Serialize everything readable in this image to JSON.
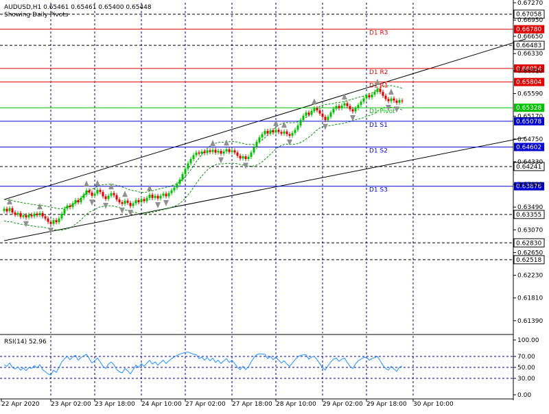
{
  "header": {
    "symbol_line": "AUDUSD,H1  0.65461 0.65461 0.65400 0.65448",
    "indicator_line": "Showing Daily Pivots"
  },
  "rsi": {
    "label": "RSI(14) 52.96",
    "levels": [
      100,
      70,
      50,
      30,
      0
    ],
    "level_labels": [
      "100.00",
      "70.00",
      "50.00",
      "30.00",
      "0.00"
    ]
  },
  "colors": {
    "up": "#00c000",
    "down": "#e00000",
    "resistance": "#e00000",
    "support": "#0000d0",
    "pivot": "#00c000",
    "grid": "#000080",
    "rsi_line": "#1e90ff",
    "band": "#009000",
    "fractal": "#909090"
  },
  "chart_data": {
    "type": "candlestick",
    "symbol": "AUDUSD",
    "timeframe": "H1",
    "last_bar": {
      "open": 0.65461,
      "high": 0.65461,
      "low": 0.654,
      "close": 0.65448
    },
    "ylim": [
      0.6116,
      0.6727
    ],
    "price_axis_ticks": [
      "0.67270",
      "0.66950",
      "0.66650",
      "0.66330",
      "0.66010",
      "0.65590",
      "0.65170",
      "0.64750",
      "0.64330",
      "0.63910",
      "0.63490",
      "0.63070",
      "0.62650",
      "0.62230",
      "0.61810",
      "0.61390"
    ],
    "x_axis_ticks": [
      "22 Apr 2020",
      "23 Apr 02:00",
      "23 Apr 18:00",
      "24 Apr 10:00",
      "27 Apr 02:00",
      "27 Apr 18:00",
      "28 Apr 10:00",
      "29 Apr 02:00",
      "29 Apr 18:00",
      "30 Apr 10:00"
    ],
    "pivot_levels": [
      {
        "label": "D1 R3",
        "value": 0.6678,
        "price_label": "0.66780",
        "kind": "resistance"
      },
      {
        "label": "D1 R2",
        "value": 0.66054,
        "price_label": "0.66054",
        "kind": "resistance_faint"
      },
      {
        "label": "D1 R1",
        "value": 0.65804,
        "price_label": "0.65804",
        "kind": "resistance"
      },
      {
        "label": "D1 Pivot",
        "value": 0.65328,
        "price_label": "0.65328",
        "kind": "pivot"
      },
      {
        "label": "D1 S1",
        "value": 0.65078,
        "price_label": "0.65078",
        "kind": "support"
      },
      {
        "label": "D1 S2",
        "value": 0.64602,
        "price_label": "0.64602",
        "kind": "support"
      },
      {
        "label": "D1 S3",
        "value": 0.63876,
        "price_label": "0.63876",
        "kind": "support"
      }
    ],
    "dashed_levels": [
      {
        "value": 0.67058,
        "price_label": "0.67058"
      },
      {
        "value": 0.66483,
        "price_label": "0.66483"
      },
      {
        "value": 0.64241,
        "price_label": "0.64241"
      },
      {
        "value": 0.63355,
        "price_label": "0.63355"
      },
      {
        "value": 0.6283,
        "price_label": "0.62830"
      },
      {
        "value": 0.62518,
        "price_label": "0.62518"
      }
    ],
    "channel_lines": [
      {
        "name": "upper",
        "start": {
          "bar": 0,
          "price": 0.6363
        },
        "end": {
          "bar": 190,
          "price": 0.666
        }
      },
      {
        "name": "lower",
        "start": {
          "bar": 0,
          "price": 0.6287
        },
        "end": {
          "bar": 190,
          "price": 0.6478
        }
      }
    ],
    "candles": [
      {
        "o": 0.6342,
        "c": 0.6346
      },
      {
        "o": 0.6346,
        "c": 0.6341
      },
      {
        "o": 0.6342,
        "c": 0.6347
      },
      {
        "o": 0.6347,
        "c": 0.6339
      },
      {
        "o": 0.6339,
        "c": 0.6335
      },
      {
        "o": 0.6335,
        "c": 0.6338
      },
      {
        "o": 0.6338,
        "c": 0.6331
      },
      {
        "o": 0.6331,
        "c": 0.6334
      },
      {
        "o": 0.6334,
        "c": 0.633
      },
      {
        "o": 0.633,
        "c": 0.6335
      },
      {
        "o": 0.6335,
        "c": 0.6332
      },
      {
        "o": 0.6332,
        "c": 0.6337
      },
      {
        "o": 0.6337,
        "c": 0.6334
      },
      {
        "o": 0.6334,
        "c": 0.6338
      },
      {
        "o": 0.6338,
        "c": 0.6332
      },
      {
        "o": 0.6332,
        "c": 0.6328
      },
      {
        "o": 0.6328,
        "c": 0.6322
      },
      {
        "o": 0.6322,
        "c": 0.6318
      },
      {
        "o": 0.6318,
        "c": 0.6325
      },
      {
        "o": 0.6325,
        "c": 0.6321
      },
      {
        "o": 0.6321,
        "c": 0.6328
      },
      {
        "o": 0.6328,
        "c": 0.6337
      },
      {
        "o": 0.6337,
        "c": 0.6346
      },
      {
        "o": 0.6346,
        "c": 0.6352
      },
      {
        "o": 0.6352,
        "c": 0.6349
      },
      {
        "o": 0.6349,
        "c": 0.6356
      },
      {
        "o": 0.6356,
        "c": 0.6362
      },
      {
        "o": 0.6362,
        "c": 0.6358
      },
      {
        "o": 0.6358,
        "c": 0.6366
      },
      {
        "o": 0.6366,
        "c": 0.6372
      },
      {
        "o": 0.6372,
        "c": 0.638
      },
      {
        "o": 0.638,
        "c": 0.6376
      },
      {
        "o": 0.6376,
        "c": 0.637
      },
      {
        "o": 0.637,
        "c": 0.6374
      },
      {
        "o": 0.6374,
        "c": 0.6381
      },
      {
        "o": 0.6381,
        "c": 0.6377
      },
      {
        "o": 0.6377,
        "c": 0.6369
      },
      {
        "o": 0.6369,
        "c": 0.6364
      },
      {
        "o": 0.6364,
        "c": 0.637
      },
      {
        "o": 0.637,
        "c": 0.6375
      },
      {
        "o": 0.6375,
        "c": 0.6371
      },
      {
        "o": 0.6371,
        "c": 0.6363
      },
      {
        "o": 0.6363,
        "c": 0.6358
      },
      {
        "o": 0.6358,
        "c": 0.6355
      },
      {
        "o": 0.6355,
        "c": 0.6361
      },
      {
        "o": 0.6361,
        "c": 0.6357
      },
      {
        "o": 0.6357,
        "c": 0.6351
      },
      {
        "o": 0.6351,
        "c": 0.6356
      },
      {
        "o": 0.6356,
        "c": 0.6362
      },
      {
        "o": 0.6362,
        "c": 0.6358
      },
      {
        "o": 0.6358,
        "c": 0.6364
      },
      {
        "o": 0.6364,
        "c": 0.636
      },
      {
        "o": 0.636,
        "c": 0.6366
      },
      {
        "o": 0.6366,
        "c": 0.6372
      },
      {
        "o": 0.6372,
        "c": 0.6366
      },
      {
        "o": 0.6366,
        "c": 0.637
      },
      {
        "o": 0.637,
        "c": 0.6365
      },
      {
        "o": 0.6365,
        "c": 0.637
      },
      {
        "o": 0.637,
        "c": 0.6374
      },
      {
        "o": 0.6374,
        "c": 0.6369
      },
      {
        "o": 0.6369,
        "c": 0.6375
      },
      {
        "o": 0.6375,
        "c": 0.638
      },
      {
        "o": 0.638,
        "c": 0.6385
      },
      {
        "o": 0.6385,
        "c": 0.6392
      },
      {
        "o": 0.6392,
        "c": 0.64
      },
      {
        "o": 0.64,
        "c": 0.641
      },
      {
        "o": 0.641,
        "c": 0.642
      },
      {
        "o": 0.642,
        "c": 0.643
      },
      {
        "o": 0.643,
        "c": 0.6438
      },
      {
        "o": 0.6438,
        "c": 0.6445
      },
      {
        "o": 0.6445,
        "c": 0.645
      },
      {
        "o": 0.645,
        "c": 0.6448
      },
      {
        "o": 0.6448,
        "c": 0.6452
      },
      {
        "o": 0.6452,
        "c": 0.6449
      },
      {
        "o": 0.6449,
        "c": 0.6454
      },
      {
        "o": 0.6454,
        "c": 0.6451
      },
      {
        "o": 0.6451,
        "c": 0.6455
      },
      {
        "o": 0.6455,
        "c": 0.645
      },
      {
        "o": 0.645,
        "c": 0.6453
      },
      {
        "o": 0.6453,
        "c": 0.6448
      },
      {
        "o": 0.6448,
        "c": 0.6452
      },
      {
        "o": 0.6452,
        "c": 0.6456
      },
      {
        "o": 0.6456,
        "c": 0.6451
      },
      {
        "o": 0.6451,
        "c": 0.6454
      },
      {
        "o": 0.6454,
        "c": 0.645
      },
      {
        "o": 0.645,
        "c": 0.6444
      },
      {
        "o": 0.6444,
        "c": 0.6439
      },
      {
        "o": 0.6439,
        "c": 0.6443
      },
      {
        "o": 0.6443,
        "c": 0.6438
      },
      {
        "o": 0.6438,
        "c": 0.6442
      },
      {
        "o": 0.6442,
        "c": 0.645
      },
      {
        "o": 0.645,
        "c": 0.646
      },
      {
        "o": 0.646,
        "c": 0.647
      },
      {
        "o": 0.647,
        "c": 0.6478
      },
      {
        "o": 0.6478,
        "c": 0.6484
      },
      {
        "o": 0.6484,
        "c": 0.649
      },
      {
        "o": 0.649,
        "c": 0.6485
      },
      {
        "o": 0.6485,
        "c": 0.6491
      },
      {
        "o": 0.6491,
        "c": 0.6487
      },
      {
        "o": 0.6487,
        "c": 0.6492
      },
      {
        "o": 0.6492,
        "c": 0.6488
      },
      {
        "o": 0.6488,
        "c": 0.6485
      },
      {
        "o": 0.6485,
        "c": 0.6489
      },
      {
        "o": 0.6489,
        "c": 0.6484
      },
      {
        "o": 0.6484,
        "c": 0.6481
      },
      {
        "o": 0.6481,
        "c": 0.6486
      },
      {
        "o": 0.6486,
        "c": 0.6492
      },
      {
        "o": 0.6492,
        "c": 0.65
      },
      {
        "o": 0.65,
        "c": 0.651
      },
      {
        "o": 0.651,
        "c": 0.6518
      },
      {
        "o": 0.6518,
        "c": 0.6524
      },
      {
        "o": 0.6524,
        "c": 0.652
      },
      {
        "o": 0.652,
        "c": 0.6527
      },
      {
        "o": 0.6527,
        "c": 0.6532
      },
      {
        "o": 0.6532,
        "c": 0.6528
      },
      {
        "o": 0.6528,
        "c": 0.6522
      },
      {
        "o": 0.6522,
        "c": 0.6516
      },
      {
        "o": 0.6516,
        "c": 0.651
      },
      {
        "o": 0.651,
        "c": 0.6516
      },
      {
        "o": 0.6516,
        "c": 0.6524
      },
      {
        "o": 0.6524,
        "c": 0.6531
      },
      {
        "o": 0.6531,
        "c": 0.6536
      },
      {
        "o": 0.6536,
        "c": 0.6532
      },
      {
        "o": 0.6532,
        "c": 0.6537
      },
      {
        "o": 0.6537,
        "c": 0.6541
      },
      {
        "o": 0.6541,
        "c": 0.6536
      },
      {
        "o": 0.6536,
        "c": 0.653
      },
      {
        "o": 0.653,
        "c": 0.6526
      },
      {
        "o": 0.6526,
        "c": 0.6532
      },
      {
        "o": 0.6532,
        "c": 0.6538
      },
      {
        "o": 0.6538,
        "c": 0.6544
      },
      {
        "o": 0.6544,
        "c": 0.655
      },
      {
        "o": 0.655,
        "c": 0.6556
      },
      {
        "o": 0.6556,
        "c": 0.6552
      },
      {
        "o": 0.6552,
        "c": 0.6557
      },
      {
        "o": 0.6557,
        "c": 0.6562
      },
      {
        "o": 0.6562,
        "c": 0.6568
      },
      {
        "o": 0.6568,
        "c": 0.6562
      },
      {
        "o": 0.6562,
        "c": 0.6555
      },
      {
        "o": 0.6555,
        "c": 0.6549
      },
      {
        "o": 0.6549,
        "c": 0.6545
      },
      {
        "o": 0.6545,
        "c": 0.655
      },
      {
        "o": 0.655,
        "c": 0.6546
      },
      {
        "o": 0.6546,
        "c": 0.6542
      },
      {
        "o": 0.6542,
        "c": 0.6547
      },
      {
        "o": 0.65461,
        "c": 0.65448
      }
    ],
    "rsi_values": [
      55,
      52,
      58,
      50,
      47,
      51,
      45,
      49,
      44,
      50,
      48,
      53,
      49,
      55,
      46,
      42,
      38,
      36,
      45,
      41,
      50,
      60,
      66,
      70,
      64,
      69,
      72,
      63,
      68,
      71,
      74,
      66,
      58,
      62,
      67,
      60,
      52,
      48,
      56,
      60,
      55,
      46,
      42,
      40,
      48,
      44,
      38,
      46,
      54,
      50,
      57,
      52,
      58,
      63,
      56,
      60,
      54,
      59,
      63,
      57,
      62,
      66,
      69,
      72,
      74,
      76,
      77,
      78,
      76,
      74,
      73,
      66,
      69,
      63,
      68,
      62,
      67,
      59,
      63,
      57,
      62,
      66,
      59,
      63,
      57,
      50,
      46,
      52,
      46,
      51,
      60,
      68,
      73,
      75,
      74,
      74,
      66,
      70,
      64,
      69,
      63,
      58,
      62,
      56,
      52,
      58,
      64,
      69,
      72,
      73,
      73,
      65,
      69,
      70,
      64,
      57,
      50,
      45,
      53,
      60,
      65,
      67,
      61,
      65,
      67,
      59,
      52,
      48,
      56,
      62,
      65,
      68,
      69,
      63,
      66,
      68,
      70,
      62,
      54,
      48,
      45,
      52,
      47,
      43,
      50,
      52.96
    ]
  }
}
